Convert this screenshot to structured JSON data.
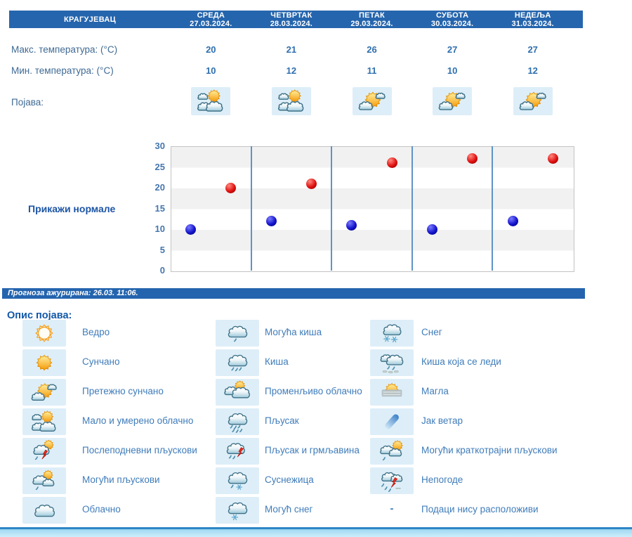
{
  "header": {
    "city": "КРАГУЈЕВАЦ",
    "days": [
      {
        "name": "СРЕДА",
        "date": "27.03.2024."
      },
      {
        "name": "ЧЕТВРТАК",
        "date": "28.03.2024."
      },
      {
        "name": "ПЕТАК",
        "date": "29.03.2024."
      },
      {
        "name": "СУБОТА",
        "date": "30.03.2024."
      },
      {
        "name": "НЕДЕЉА",
        "date": "31.03.2024."
      }
    ]
  },
  "table": {
    "rows": [
      {
        "label": "Макс. температура: (°C)",
        "values": [
          20,
          21,
          26,
          27,
          27
        ]
      },
      {
        "label": "Мин. температура: (°C)",
        "values": [
          10,
          12,
          11,
          10,
          12
        ]
      }
    ],
    "phenomenon_label": "Појава:",
    "phenomenon_icons": [
      "partly-cloudy",
      "partly-cloudy",
      "mostly-sunny",
      "mostly-sunny",
      "mostly-sunny"
    ]
  },
  "chart_data": {
    "type": "scatter",
    "x_categories": [
      "СРЕДА 27.03.2024.",
      "ЧЕТВРТАК 28.03.2024.",
      "ПЕТАК 29.03.2024.",
      "СУБОТА 30.03.2024.",
      "НЕДЕЉА 31.03.2024."
    ],
    "series": [
      {
        "name": "Макс. температура (°C)",
        "color": "#cc0000",
        "values": [
          20,
          21,
          26,
          27,
          27
        ]
      },
      {
        "name": "Мин. температура (°C)",
        "color": "#1111cc",
        "values": [
          10,
          12,
          11,
          10,
          12
        ]
      }
    ],
    "ylim": [
      0,
      30
    ],
    "ytick_step": 5,
    "grid": "horizontal-bands",
    "legend_position": "none"
  },
  "show_normals_label": "Прикажи нормале",
  "updated_text": "Прогноза ажурирана:  26.03. 11:06.",
  "legend": {
    "title": "Опис појава:",
    "columns": [
      {
        "items": [
          {
            "icon": "clear",
            "label": "Ведро"
          },
          {
            "icon": "sunny",
            "label": "Сунчано"
          },
          {
            "icon": "mostly-sunny",
            "label": "Претежно сунчано"
          },
          {
            "icon": "partly-cloudy",
            "label": "Мало и умерено облачно"
          },
          {
            "icon": "afternoon-showers",
            "label": "Послеподневни пљускови"
          },
          {
            "icon": "possible-showers",
            "label": "Могући пљускови"
          },
          {
            "icon": "cloudy",
            "label": "Облачно"
          }
        ]
      },
      {
        "items": [
          {
            "icon": "possible-rain",
            "label": "Могућа киша"
          },
          {
            "icon": "rain",
            "label": "Киша"
          },
          {
            "icon": "variable-cloudy",
            "label": "Променљиво облачно"
          },
          {
            "icon": "shower",
            "label": "Пљусак"
          },
          {
            "icon": "shower-thunder",
            "label": "Пљусак и грмљавина"
          },
          {
            "icon": "sleet",
            "label": "Суснежица"
          },
          {
            "icon": "possible-snow",
            "label": "Могућ снег"
          }
        ]
      },
      {
        "items": [
          {
            "icon": "snow",
            "label": "Снег"
          },
          {
            "icon": "freezing-rain",
            "label": "Киша која се леди"
          },
          {
            "icon": "fog",
            "label": "Магла"
          },
          {
            "icon": "strong-wind",
            "label": "Јак ветар"
          },
          {
            "icon": "short-showers",
            "label": "Могући краткотрајни пљускови"
          },
          {
            "icon": "storm",
            "label": "Непогоде"
          },
          {
            "icon": "none",
            "label": "Подаци нису расположиви"
          }
        ]
      }
    ]
  },
  "colors": {
    "header_bg": "#2565ad",
    "updated_bar_bg": "#2464ae",
    "row_label_text": "#3f6a94",
    "value_text": "#2f6fae",
    "legend_text": "#3f7cba",
    "legend_title_text": "#1157a8",
    "normals_text": "#1d55a5",
    "tick_text": "#4576ad",
    "max_point": "#cc0000",
    "min_point": "#1111cc",
    "icon_cell_bg": "#ddeef8",
    "chart_band": "#f1f1f1",
    "chart_day_separator": "#5f93c6",
    "bottom_bar": "#b4e3f8",
    "bottom_bar_line": "#2e86c6"
  }
}
